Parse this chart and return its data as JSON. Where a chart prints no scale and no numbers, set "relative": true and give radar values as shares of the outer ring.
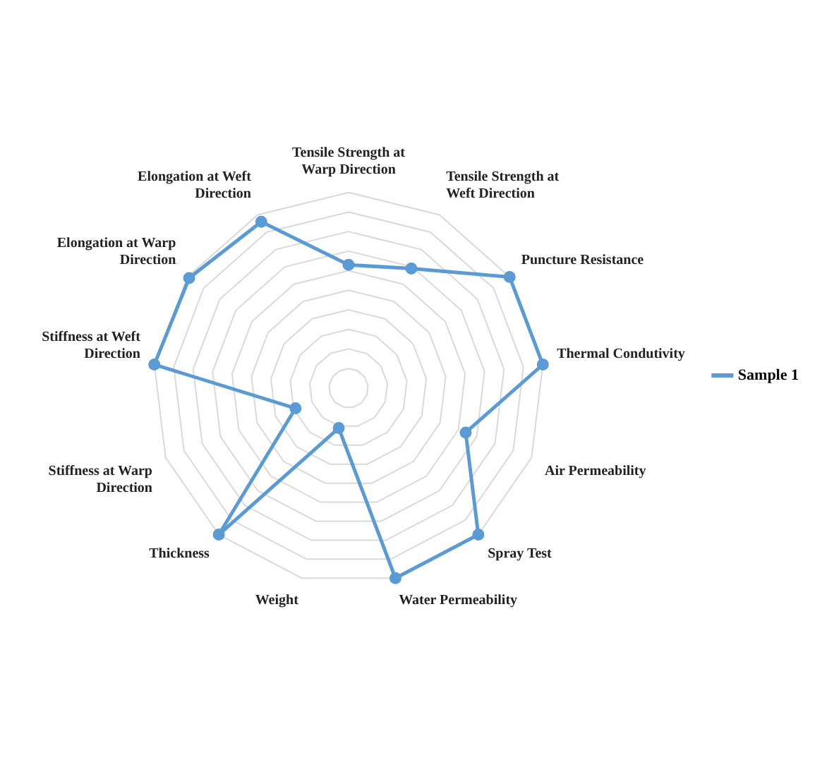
{
  "chart_data": {
    "type": "radar",
    "relative": true,
    "categories": [
      "Tensile Strength at Warp Direction",
      "Tensile Strength at Weft Direction",
      "Puncture Resistance",
      "Thermal Condutivity",
      "Air Permeability",
      "Spray Test",
      "Water Permeability",
      "Weight",
      "Thickness",
      "Stiffness at Warp Direction",
      "Stiffness at Weft Direction",
      "Elongation at Warp Direction",
      "Elongation at Weft Direction"
    ],
    "series": [
      {
        "name": "Sample 1",
        "color": "#5b9bd5",
        "values": [
          0.63,
          0.69,
          1,
          1,
          0.64,
          1,
          1,
          0.21,
          1,
          0.29,
          1,
          0.99,
          0.96
        ]
      }
    ],
    "grid": true,
    "legend": "right",
    "marker": "circle"
  }
}
